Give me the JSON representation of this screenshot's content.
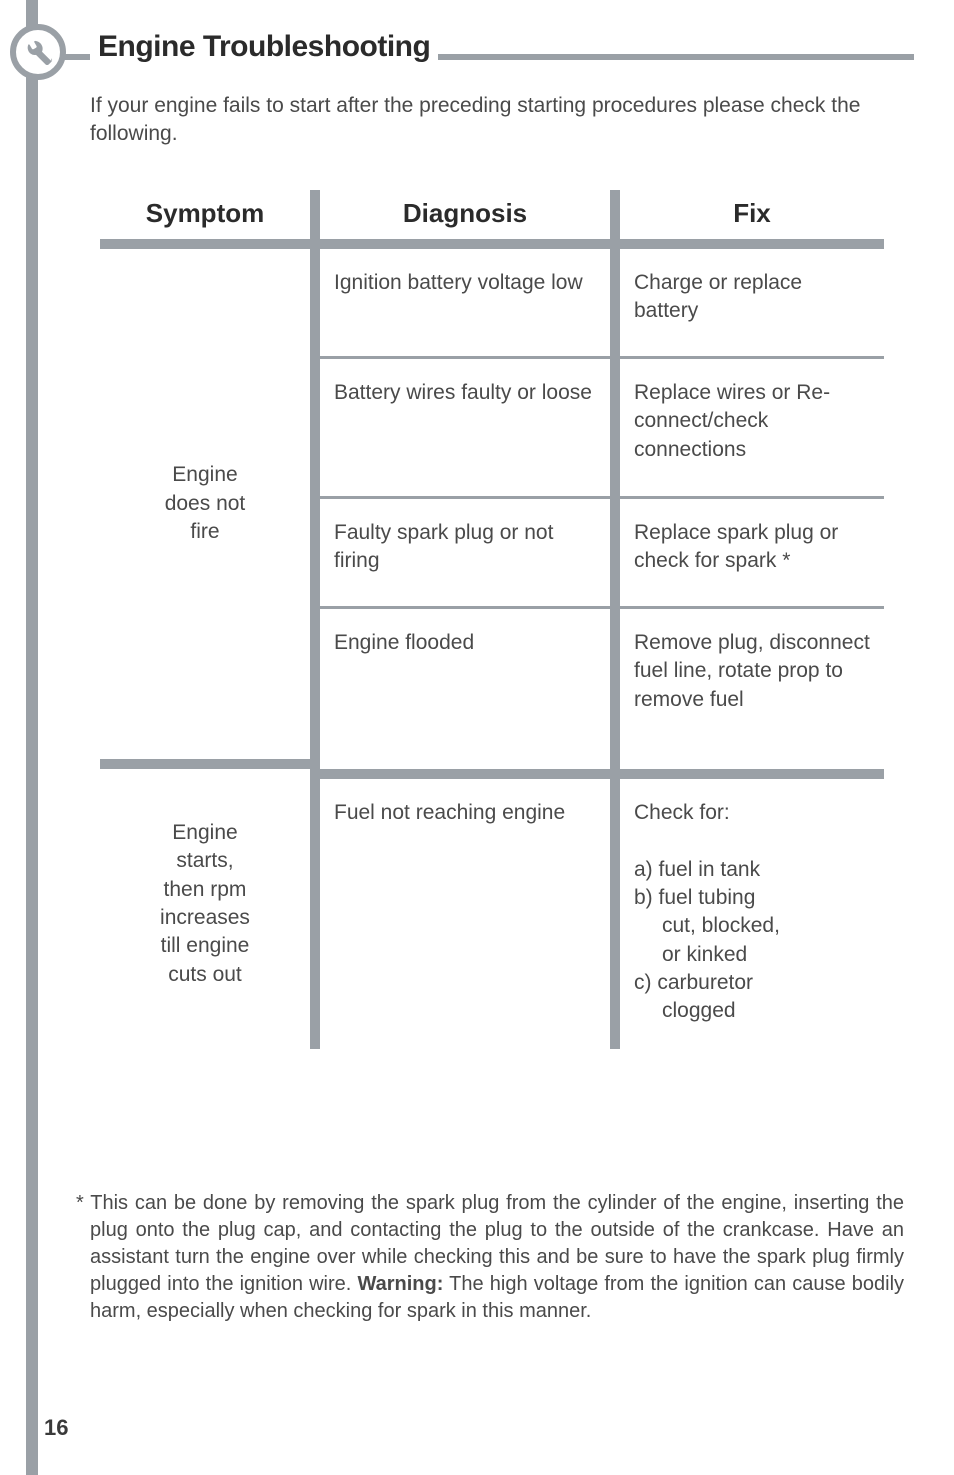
{
  "header": {
    "title": "Engine Troubleshooting",
    "title_color": "#2b2b2b",
    "title_fontsize": 30,
    "line_color": "#9aa0a6",
    "icon_name": "wrench"
  },
  "intro": "If your engine fails to start after the preceding starting procedures please check the following.",
  "table": {
    "columns": [
      "Symptom",
      "Diagnosis",
      "Fix"
    ],
    "header_fontsize": 26,
    "divider_color": "#9aa0a6",
    "body_fontsize": 21,
    "groups": [
      {
        "symptom": "Engine\ndoes not\nfire",
        "rows": [
          {
            "diagnosis": "Ignition battery voltage low",
            "fix": "Charge or replace battery"
          },
          {
            "diagnosis": "Battery wires faulty or loose",
            "fix": "Replace wires or Re-connect/check connections"
          },
          {
            "diagnosis": "Faulty spark plug or not firing",
            "fix": "Replace spark plug or check for spark *"
          },
          {
            "diagnosis": "Engine flooded",
            "fix": "Remove plug, disconnect fuel line, rotate prop to remove fuel"
          }
        ]
      },
      {
        "symptom": "Engine\nstarts,\nthen rpm\nincreases\ntill engine\ncuts out",
        "rows": [
          {
            "diagnosis": "Fuel not reaching engine",
            "fix_lines": [
              "Check for:",
              "",
              "a) fuel in tank",
              "b) fuel tubing",
              "    cut, blocked,",
              "    or kinked",
              "c) carburetor",
              "    clogged"
            ]
          }
        ]
      }
    ]
  },
  "footnote": {
    "marker": "*",
    "text": "This can be done by removing the spark plug from the cylinder of the engine, inserting the plug onto the plug cap, and contacting the plug to the outside of the crankcase. Have an assistant turn the engine over while checking this and be sure to have the spark plug firmly plugged into the ignition wire. ",
    "warning_label": "Warning:",
    "warning_text": " The high voltage from the ignition can cause bodily harm, especially when checking for spark in this manner."
  },
  "page_number": "16",
  "colors": {
    "strip": "#9aa0a6",
    "text": "#4a4a4a",
    "heading": "#2b2b2b",
    "background": "#ffffff"
  }
}
